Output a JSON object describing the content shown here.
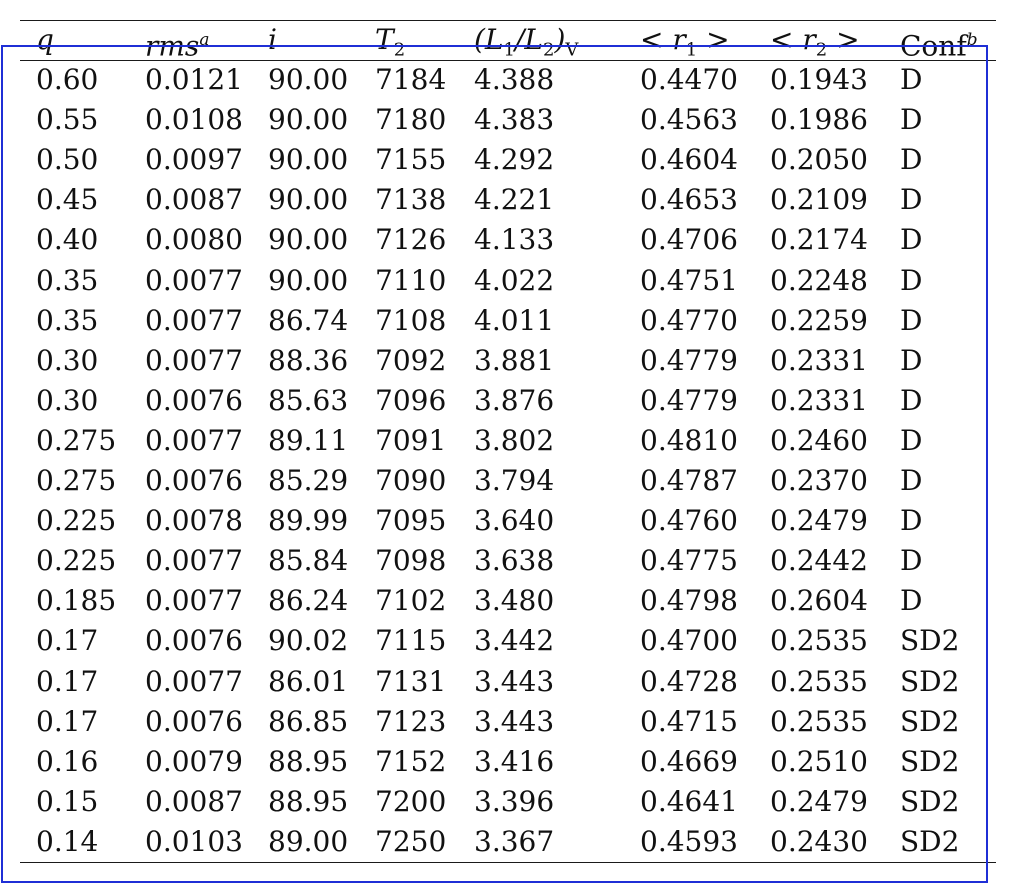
{
  "table": {
    "headers": {
      "q": "q",
      "rms": "rms",
      "rms_sup": "a",
      "i": "i",
      "t2_base": "T",
      "t2_sub": "2",
      "lum_open": "(L",
      "lum_sub1": "1",
      "lum_mid": "/L",
      "lum_sub2": "2",
      "lum_close": ")",
      "lum_subV": "V",
      "r1_open": "< r",
      "r1_sub": "1",
      "r1_close": " >",
      "r2_open": "< r",
      "r2_sub": "2",
      "r2_close": " >",
      "conf": "Conf",
      "conf_sup": "b"
    },
    "rows": [
      [
        "0.60",
        "0.0121",
        "90.00",
        "7184",
        "4.388",
        "0.4470",
        "0.1943",
        "D"
      ],
      [
        "0.55",
        "0.0108",
        "90.00",
        "7180",
        "4.383",
        "0.4563",
        "0.1986",
        "D"
      ],
      [
        "0.50",
        "0.0097",
        "90.00",
        "7155",
        "4.292",
        "0.4604",
        "0.2050",
        "D"
      ],
      [
        "0.45",
        "0.0087",
        "90.00",
        "7138",
        "4.221",
        "0.4653",
        "0.2109",
        "D"
      ],
      [
        "0.40",
        "0.0080",
        "90.00",
        "7126",
        "4.133",
        "0.4706",
        "0.2174",
        "D"
      ],
      [
        "0.35",
        "0.0077",
        "90.00",
        "7110",
        "4.022",
        "0.4751",
        "0.2248",
        "D"
      ],
      [
        "0.35",
        "0.0077",
        "86.74",
        "7108",
        "4.011",
        "0.4770",
        "0.2259",
        "D"
      ],
      [
        "0.30",
        "0.0077",
        "88.36",
        "7092",
        "3.881",
        "0.4779",
        "0.2331",
        "D"
      ],
      [
        "0.30",
        "0.0076",
        "85.63",
        "7096",
        "3.876",
        "0.4779",
        "0.2331",
        "D"
      ],
      [
        "0.275",
        "0.0077",
        "89.11",
        "7091",
        "3.802",
        "0.4810",
        "0.2460",
        "D"
      ],
      [
        "0.275",
        "0.0076",
        "85.29",
        "7090",
        "3.794",
        "0.4787",
        "0.2370",
        "D"
      ],
      [
        "0.225",
        "0.0078",
        "89.99",
        "7095",
        "3.640",
        "0.4760",
        "0.2479",
        "D"
      ],
      [
        "0.225",
        "0.0077",
        "85.84",
        "7098",
        "3.638",
        "0.4775",
        "0.2442",
        "D"
      ],
      [
        "0.185",
        "0.0077",
        "86.24",
        "7102",
        "3.480",
        "0.4798",
        "0.2604",
        "D"
      ],
      [
        "0.17",
        "0.0076",
        "90.02",
        "7115",
        "3.442",
        "0.4700",
        "0.2535",
        "SD2"
      ],
      [
        "0.17",
        "0.0077",
        "86.01",
        "7131",
        "3.443",
        "0.4728",
        "0.2535",
        "SD2"
      ],
      [
        "0.17",
        "0.0076",
        "86.85",
        "7123",
        "3.443",
        "0.4715",
        "0.2535",
        "SD2"
      ],
      [
        "0.16",
        "0.0079",
        "88.95",
        "7152",
        "3.416",
        "0.4669",
        "0.2510",
        "SD2"
      ],
      [
        "0.15",
        "0.0087",
        "88.95",
        "7200",
        "3.396",
        "0.4641",
        "0.2479",
        "SD2"
      ],
      [
        "0.14",
        "0.0103",
        "89.00",
        "7250",
        "3.367",
        "0.4593",
        "0.2430",
        "SD2"
      ]
    ]
  }
}
